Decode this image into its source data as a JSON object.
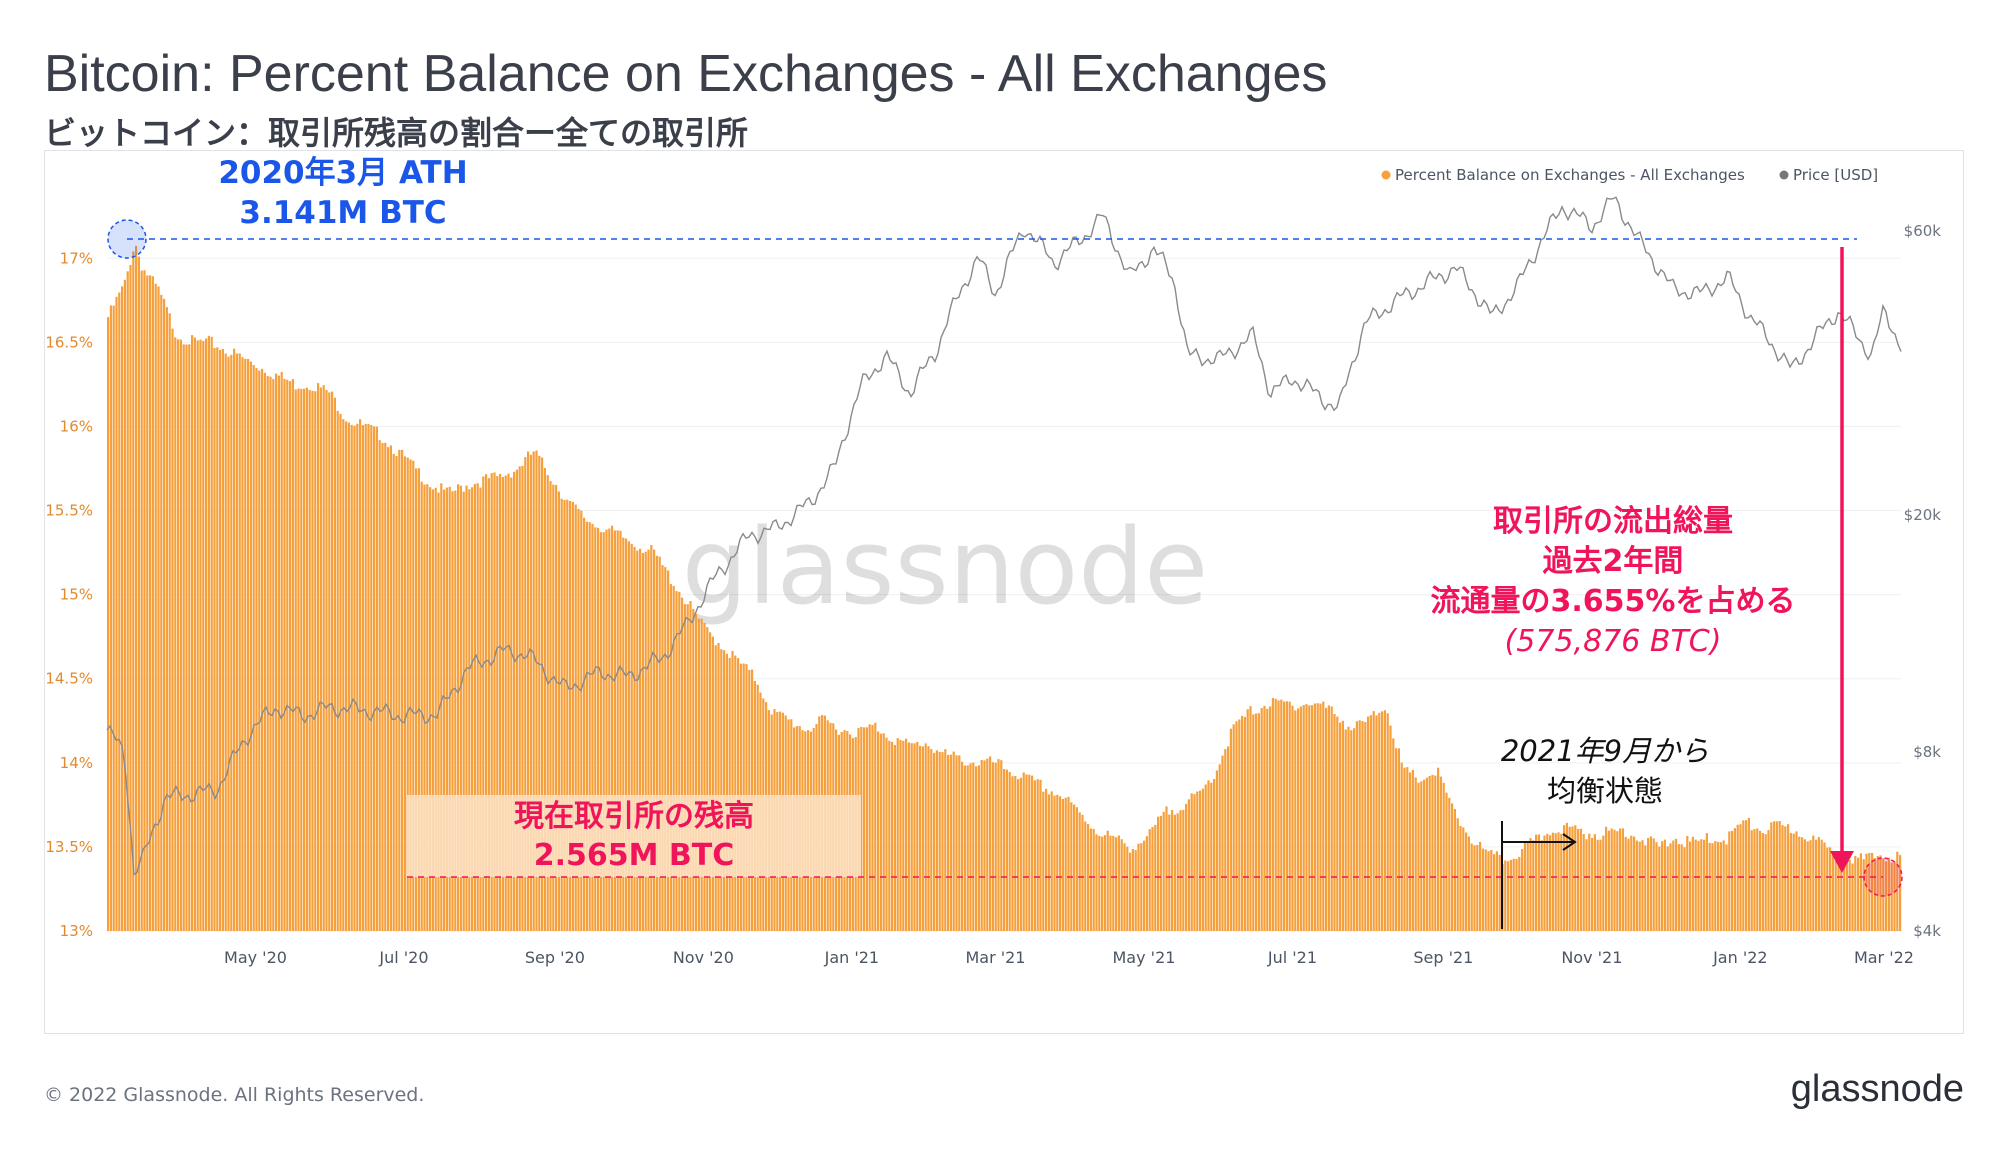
{
  "title": "Bitcoin: Percent Balance on Exchanges - All Exchanges",
  "subtitle": "ビットコイン：取引所残高の割合ー全ての取引所",
  "watermark": "glassnode",
  "footer": "© 2022 Glassnode. All Rights Reserved.",
  "brand": "glassnode",
  "colors": {
    "bar": "#f5a03c",
    "price": "#8a8a8a",
    "accent_blue": "#1a56e8",
    "accent_pink": "#f0145a"
  },
  "annotations": {
    "ath_line1": "2020年3月 ATH",
    "ath_line2": "3.141M BTC",
    "current_line1": "現在取引所の残高",
    "current_line2": "2.565M BTC",
    "outflow_line1": "取引所の流出総量",
    "outflow_line2": "過去2年間",
    "outflow_line3": "流通量の3.655%を占める",
    "outflow_line4": "(575,876 BTC)",
    "equilibrium_line1": "2021年9月から",
    "equilibrium_line2": "均衡状態"
  },
  "chart_data": {
    "type": "bar",
    "legend_position": "top-right",
    "x_ticks": [
      "May '20",
      "Jul '20",
      "Sep '20",
      "Nov '20",
      "Jan '21",
      "Mar '21",
      "May '21",
      "Jul '21",
      "Sep '21",
      "Nov '21",
      "Jan '22",
      "Mar '22"
    ],
    "y_left_ticks": [
      "17%",
      "16.5%",
      "16%",
      "15.5%",
      "15%",
      "14.5%",
      "14%",
      "13.5%",
      "13%"
    ],
    "y_left_range": [
      13.0,
      17.4
    ],
    "y_right_ticks": [
      "$60k",
      "$20k",
      "$8k",
      "$4k"
    ],
    "y_right_scale": "log",
    "y_right_range": [
      4000,
      70000
    ],
    "x_range": [
      "2020-03-01",
      "2022-03-08"
    ],
    "series": [
      {
        "name": "Percent Balance on Exchanges - All Exchanges",
        "axis": "left",
        "style": "bar",
        "points": [
          [
            "2020-03-01",
            16.65
          ],
          [
            "2020-03-08",
            16.85
          ],
          [
            "2020-03-12",
            17.1
          ],
          [
            "2020-03-15",
            16.95
          ],
          [
            "2020-03-22",
            16.8
          ],
          [
            "2020-03-29",
            16.55
          ],
          [
            "2020-04-05",
            16.5
          ],
          [
            "2020-04-12",
            16.5
          ],
          [
            "2020-04-19",
            16.45
          ],
          [
            "2020-04-26",
            16.4
          ],
          [
            "2020-05-03",
            16.35
          ],
          [
            "2020-05-10",
            16.3
          ],
          [
            "2020-05-17",
            16.25
          ],
          [
            "2020-05-24",
            16.25
          ],
          [
            "2020-05-31",
            16.2
          ],
          [
            "2020-06-07",
            16.05
          ],
          [
            "2020-06-14",
            16.0
          ],
          [
            "2020-06-21",
            15.95
          ],
          [
            "2020-06-28",
            15.85
          ],
          [
            "2020-07-05",
            15.75
          ],
          [
            "2020-07-12",
            15.65
          ],
          [
            "2020-07-19",
            15.6
          ],
          [
            "2020-07-26",
            15.65
          ],
          [
            "2020-08-02",
            15.68
          ],
          [
            "2020-08-09",
            15.7
          ],
          [
            "2020-08-16",
            15.75
          ],
          [
            "2020-08-23",
            15.85
          ],
          [
            "2020-08-30",
            15.7
          ],
          [
            "2020-09-06",
            15.55
          ],
          [
            "2020-09-13",
            15.45
          ],
          [
            "2020-09-20",
            15.4
          ],
          [
            "2020-09-27",
            15.35
          ],
          [
            "2020-10-04",
            15.3
          ],
          [
            "2020-10-11",
            15.25
          ],
          [
            "2020-10-18",
            15.1
          ],
          [
            "2020-10-25",
            14.95
          ],
          [
            "2020-11-01",
            14.8
          ],
          [
            "2020-11-08",
            14.7
          ],
          [
            "2020-11-15",
            14.6
          ],
          [
            "2020-11-22",
            14.5
          ],
          [
            "2020-11-29",
            14.3
          ],
          [
            "2020-12-06",
            14.25
          ],
          [
            "2020-12-13",
            14.2
          ],
          [
            "2020-12-20",
            14.25
          ],
          [
            "2020-12-27",
            14.2
          ],
          [
            "2021-01-03",
            14.18
          ],
          [
            "2021-01-10",
            14.22
          ],
          [
            "2021-01-17",
            14.15
          ],
          [
            "2021-01-24",
            14.1
          ],
          [
            "2021-01-31",
            14.12
          ],
          [
            "2021-02-07",
            14.05
          ],
          [
            "2021-02-14",
            14.02
          ],
          [
            "2021-02-21",
            14.0
          ],
          [
            "2021-02-28",
            14.0
          ],
          [
            "2021-03-07",
            13.95
          ],
          [
            "2021-03-14",
            13.9
          ],
          [
            "2021-03-21",
            13.85
          ],
          [
            "2021-03-28",
            13.8
          ],
          [
            "2021-04-04",
            13.7
          ],
          [
            "2021-04-11",
            13.6
          ],
          [
            "2021-04-18",
            13.55
          ],
          [
            "2021-04-25",
            13.5
          ],
          [
            "2021-05-02",
            13.55
          ],
          [
            "2021-05-09",
            13.7
          ],
          [
            "2021-05-16",
            13.75
          ],
          [
            "2021-05-23",
            13.8
          ],
          [
            "2021-05-30",
            13.95
          ],
          [
            "2021-06-06",
            14.2
          ],
          [
            "2021-06-13",
            14.3
          ],
          [
            "2021-06-20",
            14.35
          ],
          [
            "2021-06-27",
            14.35
          ],
          [
            "2021-07-04",
            14.35
          ],
          [
            "2021-07-11",
            14.35
          ],
          [
            "2021-07-18",
            14.3
          ],
          [
            "2021-07-25",
            14.2
          ],
          [
            "2021-08-01",
            14.25
          ],
          [
            "2021-08-08",
            14.35
          ],
          [
            "2021-08-15",
            13.95
          ],
          [
            "2021-08-22",
            13.9
          ],
          [
            "2021-08-29",
            13.95
          ],
          [
            "2021-09-05",
            13.7
          ],
          [
            "2021-09-12",
            13.55
          ],
          [
            "2021-09-19",
            13.45
          ],
          [
            "2021-09-26",
            13.42
          ],
          [
            "2021-10-03",
            13.48
          ],
          [
            "2021-10-10",
            13.55
          ],
          [
            "2021-10-17",
            13.62
          ],
          [
            "2021-10-24",
            13.6
          ],
          [
            "2021-10-31",
            13.58
          ],
          [
            "2021-11-07",
            13.58
          ],
          [
            "2021-11-14",
            13.6
          ],
          [
            "2021-11-21",
            13.55
          ],
          [
            "2021-11-28",
            13.5
          ],
          [
            "2021-12-05",
            13.55
          ],
          [
            "2021-12-12",
            13.52
          ],
          [
            "2021-12-19",
            13.55
          ],
          [
            "2021-12-26",
            13.55
          ],
          [
            "2022-01-02",
            13.65
          ],
          [
            "2022-01-09",
            13.6
          ],
          [
            "2022-01-16",
            13.62
          ],
          [
            "2022-01-23",
            13.6
          ],
          [
            "2022-01-30",
            13.55
          ],
          [
            "2022-02-06",
            13.48
          ],
          [
            "2022-02-13",
            13.45
          ],
          [
            "2022-02-20",
            13.42
          ],
          [
            "2022-02-27",
            13.45
          ],
          [
            "2022-03-06",
            13.44
          ]
        ]
      },
      {
        "name": "Price [USD]",
        "axis": "right",
        "style": "line",
        "points": [
          [
            "2020-03-01",
            8700
          ],
          [
            "2020-03-08",
            8000
          ],
          [
            "2020-03-12",
            5000
          ],
          [
            "2020-03-16",
            5300
          ],
          [
            "2020-03-25",
            6700
          ],
          [
            "2020-04-05",
            6800
          ],
          [
            "2020-04-15",
            6900
          ],
          [
            "2020-04-30",
            8800
          ],
          [
            "2020-05-10",
            9500
          ],
          [
            "2020-05-20",
            9200
          ],
          [
            "2020-06-01",
            9500
          ],
          [
            "2020-06-15",
            9400
          ],
          [
            "2020-07-01",
            9200
          ],
          [
            "2020-07-15",
            9250
          ],
          [
            "2020-07-27",
            11000
          ],
          [
            "2020-08-10",
            11800
          ],
          [
            "2020-08-20",
            11700
          ],
          [
            "2020-09-05",
            10200
          ],
          [
            "2020-09-20",
            10900
          ],
          [
            "2020-10-01",
            10700
          ],
          [
            "2020-10-15",
            11500
          ],
          [
            "2020-10-25",
            13000
          ],
          [
            "2020-11-05",
            15500
          ],
          [
            "2020-11-20",
            18500
          ],
          [
            "2020-12-01",
            19000
          ],
          [
            "2020-12-15",
            21000
          ],
          [
            "2020-12-25",
            24000
          ],
          [
            "2021-01-05",
            33000
          ],
          [
            "2021-01-15",
            37000
          ],
          [
            "2021-01-25",
            32000
          ],
          [
            "2021-02-05",
            38000
          ],
          [
            "2021-02-15",
            48000
          ],
          [
            "2021-02-22",
            54000
          ],
          [
            "2021-03-01",
            47000
          ],
          [
            "2021-03-13",
            61000
          ],
          [
            "2021-03-25",
            53000
          ],
          [
            "2021-04-05",
            58000
          ],
          [
            "2021-04-14",
            63500
          ],
          [
            "2021-04-25",
            50000
          ],
          [
            "2021-05-05",
            56000
          ],
          [
            "2021-05-13",
            50000
          ],
          [
            "2021-05-19",
            37000
          ],
          [
            "2021-06-01",
            36500
          ],
          [
            "2021-06-15",
            40000
          ],
          [
            "2021-06-22",
            32000
          ],
          [
            "2021-07-01",
            34000
          ],
          [
            "2021-07-20",
            30000
          ],
          [
            "2021-07-31",
            42000
          ],
          [
            "2021-08-15",
            46500
          ],
          [
            "2021-09-06",
            52000
          ],
          [
            "2021-09-21",
            43000
          ],
          [
            "2021-10-01",
            48000
          ],
          [
            "2021-10-20",
            66000
          ],
          [
            "2021-11-01",
            61000
          ],
          [
            "2021-11-10",
            68000
          ],
          [
            "2021-11-20",
            58000
          ],
          [
            "2021-12-04",
            48000
          ],
          [
            "2021-12-15",
            47000
          ],
          [
            "2021-12-27",
            50000
          ],
          [
            "2022-01-05",
            43000
          ],
          [
            "2022-01-22",
            35000
          ],
          [
            "2022-02-10",
            44000
          ],
          [
            "2022-02-24",
            37000
          ],
          [
            "2022-03-01",
            44000
          ],
          [
            "2022-03-08",
            38500
          ]
        ]
      }
    ]
  }
}
